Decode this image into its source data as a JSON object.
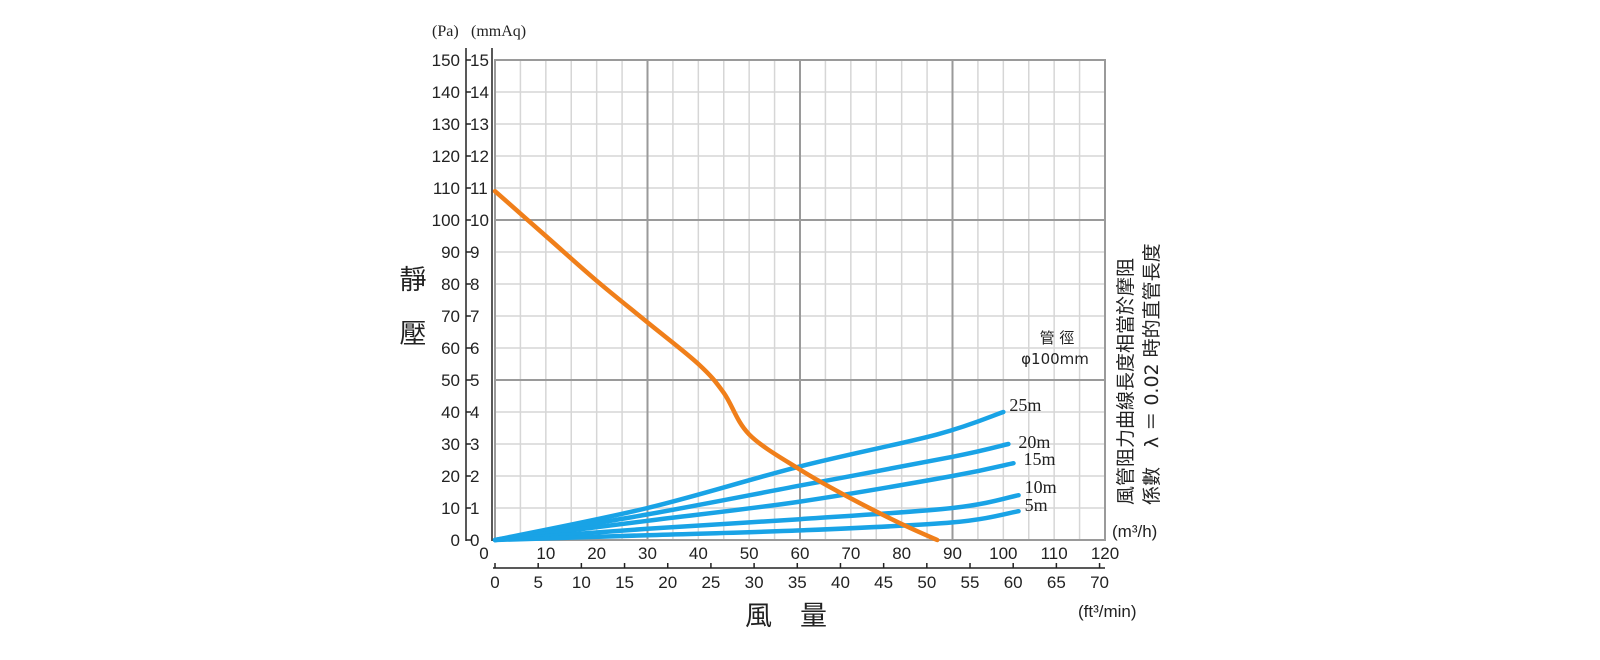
{
  "chart_data": {
    "type": "line",
    "title": "",
    "ylabel": "靜壓",
    "xlabel": "風量",
    "y_unit_pa": "(Pa)",
    "y_unit_mmaq": "(mmAq)",
    "x_unit_m3h": "(m³/h)",
    "x_unit_ft3min": "(ft³/min)",
    "y_ticks_pa": [
      "0",
      "10",
      "20",
      "30",
      "40",
      "50",
      "60",
      "70",
      "80",
      "90",
      "100",
      "110",
      "120",
      "130",
      "140",
      "150"
    ],
    "y_ticks_mmaq": [
      "0",
      "1",
      "2",
      "3",
      "4",
      "5",
      "6",
      "7",
      "8",
      "9",
      "10",
      "11",
      "12",
      "13",
      "14",
      "15"
    ],
    "x_ticks_m3h": [
      "0",
      "10",
      "20",
      "30",
      "40",
      "50",
      "60",
      "70",
      "80",
      "90",
      "100",
      "110",
      "120"
    ],
    "x_ticks_ft3min": [
      "0",
      "5",
      "10",
      "15",
      "20",
      "25",
      "30",
      "35",
      "40",
      "45",
      "50",
      "55",
      "60",
      "65",
      "70"
    ],
    "xlim": [
      0,
      120
    ],
    "ylim_pa": [
      0,
      150
    ],
    "grid": true,
    "diameter_label_line1": "管 徑",
    "diameter_label_line2": "φ100mm",
    "note_line1": "風管阻力曲線長度相當於摩阻",
    "note_line2": "係數　λ ＝ 0.02 時的直管長度",
    "fan_curve": {
      "x": [
        0,
        10,
        20,
        30,
        40,
        45,
        50,
        60,
        70,
        80,
        87
      ],
      "y": [
        109,
        95,
        81,
        68,
        55,
        46,
        33,
        22,
        13,
        5,
        0
      ]
    },
    "series": [
      {
        "name": "25m",
        "x": [
          0,
          30,
          60,
          87,
          100
        ],
        "y": [
          0,
          10,
          23,
          33,
          40
        ]
      },
      {
        "name": "20m",
        "x": [
          0,
          30,
          60,
          90,
          101
        ],
        "y": [
          0,
          8,
          17,
          26,
          30
        ]
      },
      {
        "name": "15m",
        "x": [
          0,
          30,
          60,
          90,
          102
        ],
        "y": [
          0,
          6,
          12,
          20,
          24
        ]
      },
      {
        "name": "10m",
        "x": [
          0,
          30,
          60,
          90,
          103
        ],
        "y": [
          0,
          3.5,
          6.5,
          10,
          14
        ]
      },
      {
        "name": "5m",
        "x": [
          0,
          30,
          60,
          90,
          103
        ],
        "y": [
          0,
          1.5,
          3,
          5.5,
          9
        ]
      }
    ],
    "colors": {
      "fan": "#F07F1A",
      "resistance": "#19A3E6",
      "major_grid": "#9a9a9a",
      "minor_grid": "#d6d6d6"
    }
  }
}
